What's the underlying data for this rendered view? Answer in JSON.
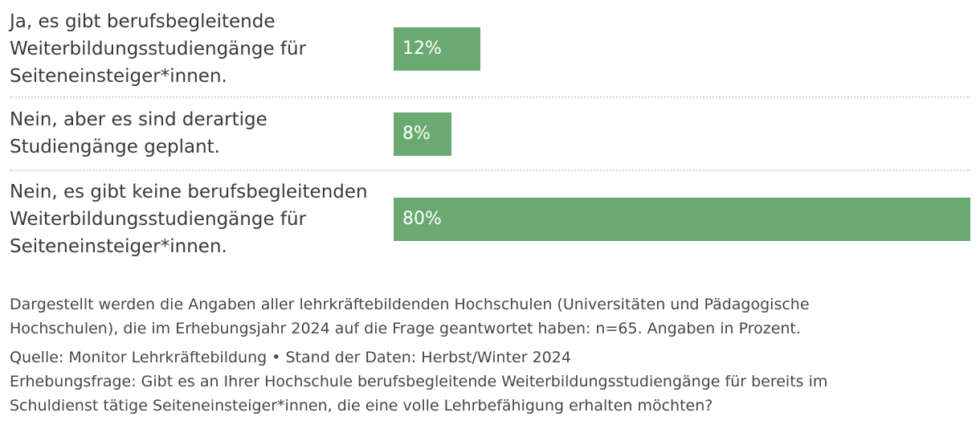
{
  "chart_data": {
    "type": "bar",
    "orientation": "horizontal",
    "categories": [
      "Ja, es gibt berufsbegleitende Weiterbildungsstudiengänge für Seiteneinsteiger*innen.",
      "Nein, aber es sind derartige Studiengänge geplant.",
      "Nein, es gibt keine berufsbegleitenden Weiterbildungsstudiengänge für Seiteneinsteiger*innen."
    ],
    "values": [
      12,
      8,
      80
    ],
    "value_labels": [
      "12%",
      "8%",
      "80%"
    ],
    "xlim": [
      0,
      80
    ],
    "unit": "%",
    "bar_color": "#6aaa72",
    "grid": false,
    "legend": "none"
  },
  "rows": [
    {
      "label_lines": [
        "Ja, es gibt berufsbegleitende",
        "Weiterbildungsstudiengänge für",
        "Seiteneinsteiger*innen."
      ],
      "value_label": "12%"
    },
    {
      "label_lines": [
        "Nein, aber es sind derartige",
        "Studiengänge geplant."
      ],
      "value_label": "8%"
    },
    {
      "label_lines": [
        "Nein, es gibt keine berufsbegleitenden",
        "Weiterbildungsstudiengänge für",
        "Seiteneinsteiger*innen."
      ],
      "value_label": "80%"
    }
  ],
  "footer": {
    "note_lines": [
      "Dargestellt werden die Angaben aller lehrkräftebildenden Hochschulen (Universitäten und Pädagogische",
      "Hochschulen), die im Erhebungsjahr 2024 auf die Frage geantwortet haben: n=65. Angaben in Prozent."
    ],
    "source": "Quelle: Monitor Lehrkräftebildung • Stand der Daten: Herbst/Winter 2024",
    "question_lines": [
      "Erhebungsfrage: Gibt es an Ihrer Hochschule berufsbegleitende Weiterbildungsstudiengänge für bereits im",
      "Schuldienst tätige Seiteneinsteiger*innen, die eine volle Lehrbefähigung erhalten möchten?"
    ]
  }
}
